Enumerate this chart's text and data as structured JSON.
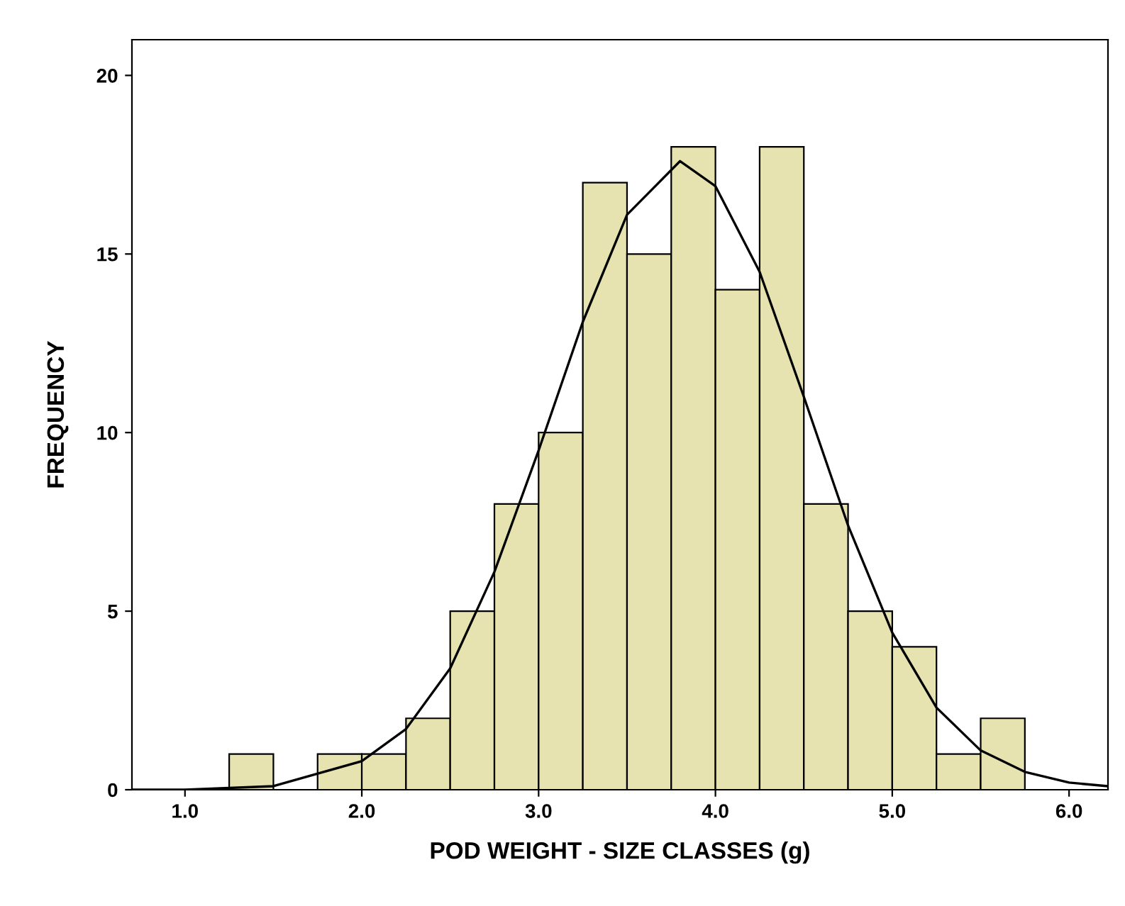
{
  "chart_data": {
    "type": "histogram",
    "xlabel": "POD WEIGHT - SIZE CLASSES (g)",
    "ylabel": "FREQUENCY",
    "bins": [
      1.25,
      1.5,
      1.75,
      2.0,
      2.25,
      2.5,
      2.75,
      3.0,
      3.25,
      3.5,
      3.75,
      4.0,
      4.25,
      4.5,
      4.75,
      5.0,
      5.25,
      5.5,
      5.75
    ],
    "values": [
      1,
      0,
      1,
      1,
      2,
      5,
      8,
      10,
      17,
      15,
      18,
      14,
      18,
      8,
      5,
      4,
      1,
      2
    ],
    "color": "#e6e3b0",
    "series": [
      {
        "type": "line",
        "color": "#000000",
        "x": [
          0.7,
          1.0,
          1.5,
          2.0,
          2.25,
          2.5,
          2.75,
          3.0,
          3.25,
          3.5,
          3.8,
          4.0,
          4.25,
          4.5,
          4.75,
          5.0,
          5.25,
          5.5,
          5.75,
          6.0,
          6.22
        ],
        "values": [
          0.0,
          0.0,
          0.1,
          0.8,
          1.7,
          3.4,
          6.1,
          9.5,
          13.1,
          16.1,
          17.6,
          16.9,
          14.5,
          11.0,
          7.4,
          4.4,
          2.3,
          1.1,
          0.5,
          0.2,
          0.1
        ]
      }
    ],
    "xlim": [
      0.7,
      6.22
    ],
    "ylim": [
      0,
      21
    ],
    "xticks": [
      {
        "value": 1,
        "label": "1.0"
      },
      {
        "value": 2,
        "label": "2.0"
      },
      {
        "value": 3,
        "label": "3.0"
      },
      {
        "value": 4,
        "label": "4.0"
      },
      {
        "value": 5,
        "label": "5.0"
      },
      {
        "value": 6,
        "label": "6.0"
      }
    ],
    "yticks": [
      0,
      5,
      10,
      15,
      20
    ],
    "grid": false,
    "legend": false
  }
}
